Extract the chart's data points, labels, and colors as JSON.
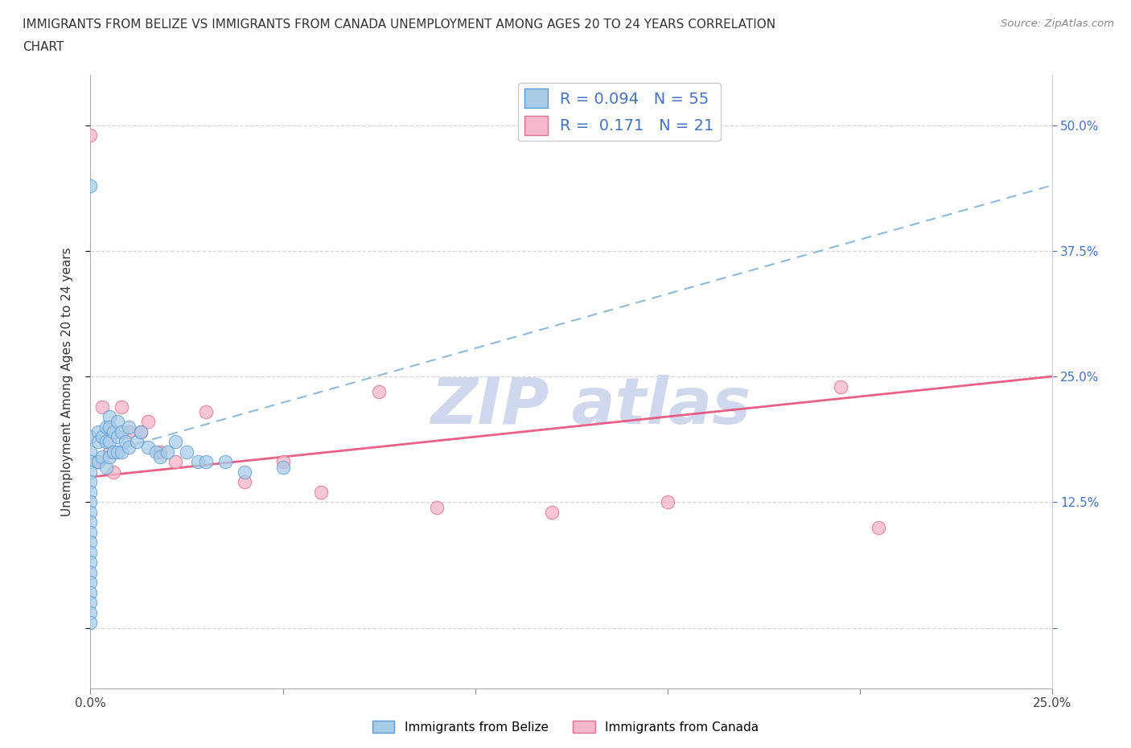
{
  "title_line1": "IMMIGRANTS FROM BELIZE VS IMMIGRANTS FROM CANADA UNEMPLOYMENT AMONG AGES 20 TO 24 YEARS CORRELATION",
  "title_line2": "CHART",
  "source": "Source: ZipAtlas.com",
  "ylabel": "Unemployment Among Ages 20 to 24 years",
  "xlim": [
    0.0,
    0.25
  ],
  "ylim": [
    -0.06,
    0.55
  ],
  "yticks": [
    0.0,
    0.125,
    0.25,
    0.375,
    0.5
  ],
  "xticks": [
    0.0,
    0.05,
    0.1,
    0.15,
    0.2,
    0.25
  ],
  "belize_R": 0.094,
  "belize_N": 55,
  "canada_R": 0.171,
  "canada_N": 21,
  "belize_color": "#a8cce8",
  "belize_edge_color": "#5b9bd5",
  "canada_color": "#f4b8ca",
  "canada_edge_color": "#e07090",
  "belize_trend_color": "#7bafd4",
  "canada_trend_color": "#e8507a",
  "watermark_color": "#d0d8ee",
  "belize_x": [
    0.0,
    0.0,
    0.0,
    0.0,
    0.0,
    0.0,
    0.0,
    0.0,
    0.0,
    0.0,
    0.0,
    0.0,
    0.0,
    0.0,
    0.0,
    0.0,
    0.0,
    0.0,
    0.0,
    0.0,
    0.002,
    0.002,
    0.002,
    0.003,
    0.003,
    0.004,
    0.004,
    0.004,
    0.005,
    0.005,
    0.005,
    0.005,
    0.006,
    0.006,
    0.007,
    0.007,
    0.007,
    0.008,
    0.008,
    0.009,
    0.01,
    0.01,
    0.012,
    0.013,
    0.015,
    0.017,
    0.018,
    0.02,
    0.022,
    0.025,
    0.028,
    0.03,
    0.035,
    0.04,
    0.05
  ],
  "belize_y": [
    0.44,
    0.19,
    0.175,
    0.165,
    0.155,
    0.145,
    0.135,
    0.125,
    0.115,
    0.105,
    0.095,
    0.085,
    0.075,
    0.065,
    0.055,
    0.045,
    0.035,
    0.025,
    0.015,
    0.005,
    0.195,
    0.185,
    0.165,
    0.19,
    0.17,
    0.2,
    0.185,
    0.16,
    0.21,
    0.2,
    0.185,
    0.17,
    0.195,
    0.175,
    0.205,
    0.19,
    0.175,
    0.195,
    0.175,
    0.185,
    0.2,
    0.18,
    0.185,
    0.195,
    0.18,
    0.175,
    0.17,
    0.175,
    0.185,
    0.175,
    0.165,
    0.165,
    0.165,
    0.155,
    0.16
  ],
  "canada_x": [
    0.0,
    0.002,
    0.003,
    0.005,
    0.006,
    0.008,
    0.01,
    0.013,
    0.015,
    0.018,
    0.022,
    0.03,
    0.04,
    0.05,
    0.06,
    0.075,
    0.09,
    0.12,
    0.15,
    0.195,
    0.205
  ],
  "canada_y": [
    0.49,
    0.165,
    0.22,
    0.175,
    0.155,
    0.22,
    0.195,
    0.195,
    0.205,
    0.175,
    0.165,
    0.215,
    0.145,
    0.165,
    0.135,
    0.235,
    0.12,
    0.115,
    0.125,
    0.24,
    0.1
  ]
}
